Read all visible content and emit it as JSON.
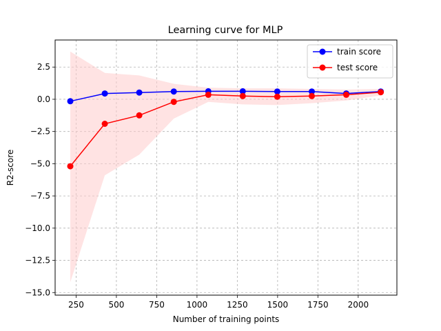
{
  "chart_data": {
    "type": "line",
    "title": "Learning curve for MLP",
    "xlabel": "Number of training points",
    "ylabel": "R2-score",
    "xlim": [
      120,
      2240
    ],
    "ylim": [
      -15.2,
      4.6
    ],
    "xticks": [
      250,
      500,
      750,
      1000,
      1250,
      1500,
      1750,
      2000
    ],
    "xtick_labels": [
      "250",
      "500",
      "750",
      "1000",
      "1250",
      "1500",
      "1750",
      "2000"
    ],
    "yticks": [
      2.5,
      0.0,
      -2.5,
      -5.0,
      -7.5,
      -10.0,
      -12.5,
      -15.0
    ],
    "ytick_labels": [
      "2.5",
      "0.0",
      "−2.5",
      "−5.0",
      "−7.5",
      "−10.0",
      "−12.5",
      "−15.0"
    ],
    "grid": true,
    "grid_style": "dashed",
    "legend_position": "top-right",
    "x": [
      214,
      428,
      642,
      856,
      1070,
      1284,
      1498,
      1712,
      1926,
      2140
    ],
    "series": [
      {
        "name": "train score",
        "color": "#0000ff",
        "band_color": "#0000ff",
        "values": [
          -0.15,
          0.45,
          0.52,
          0.6,
          0.62,
          0.62,
          0.6,
          0.6,
          0.45,
          0.6
        ],
        "lower": [
          -0.2,
          0.4,
          0.48,
          0.55,
          0.57,
          0.57,
          0.55,
          0.55,
          0.35,
          0.55
        ],
        "upper": [
          -0.1,
          0.5,
          0.56,
          0.65,
          0.67,
          0.67,
          0.65,
          0.65,
          0.55,
          0.65
        ]
      },
      {
        "name": "test score",
        "color": "#ff0000",
        "band_color": "#ffcccc",
        "values": [
          -5.2,
          -1.9,
          -1.25,
          -0.2,
          0.35,
          0.25,
          0.2,
          0.25,
          0.35,
          0.55
        ],
        "lower": [
          -14.2,
          -5.9,
          -4.3,
          -1.5,
          -0.2,
          -0.4,
          -0.45,
          -0.3,
          -0.1,
          0.3
        ],
        "upper": [
          3.7,
          2.05,
          1.85,
          1.2,
          0.9,
          0.85,
          0.85,
          0.8,
          0.75,
          0.8
        ]
      }
    ]
  }
}
